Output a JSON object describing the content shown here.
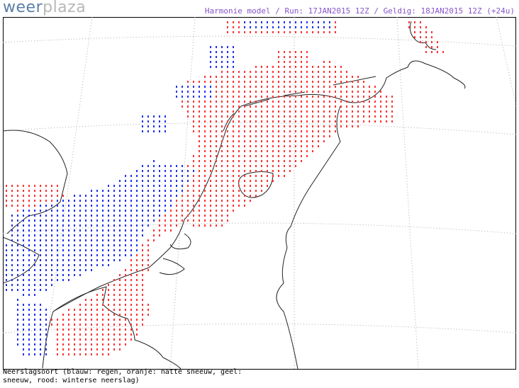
{
  "header": {
    "logo": {
      "part1": "weer",
      "part2": "plaza"
    },
    "title": "Harmonie model / Run: 17JAN2015 12Z / Geldig: 18JAN2015 12Z (+24u)"
  },
  "footer": {
    "legend_lines": [
      "Neerslagsoort (blauw: regen, oranje: natte sneeuw, geel:",
      "sneeuw, rood: winterse neerslag)"
    ]
  }
}
